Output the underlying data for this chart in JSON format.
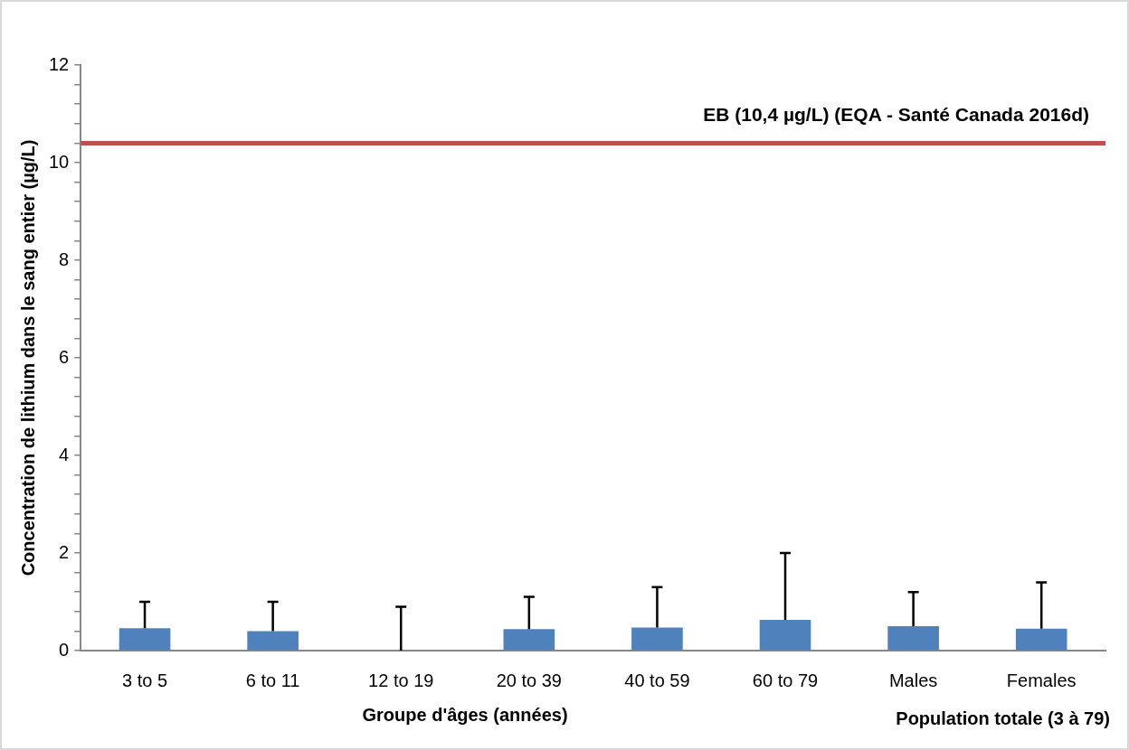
{
  "chart_data": {
    "type": "bar",
    "categories": [
      "3 to 5",
      "6 to 11",
      "12 to 19",
      "20 to 39",
      "40 to 59",
      "60 to 79",
      "Males",
      "Females"
    ],
    "values": [
      0.46,
      0.4,
      0,
      0.44,
      0.47,
      0.63,
      0.5,
      0.45
    ],
    "errors": [
      [
        0.46,
        1.0
      ],
      [
        0.4,
        1.0
      ],
      [
        0,
        0.9
      ],
      [
        0.44,
        1.1
      ],
      [
        0.47,
        1.3
      ],
      [
        0.63,
        2.0
      ],
      [
        0.5,
        1.2
      ],
      [
        0.45,
        1.4
      ]
    ],
    "color": "#4f81bd",
    "xlabel": "Groupe d'âges (années)",
    "ylabel": "Concentration de lithium dans le sang entier (µg/L)",
    "ylim": [
      0,
      12
    ],
    "yticks": [
      0,
      {
        "value": 0.4,
        "label": null
      },
      {
        "value": 0.8,
        "label": null
      },
      {
        "value": 1.2,
        "label": null
      },
      {
        "value": 1.6,
        "label": null
      },
      2,
      {
        "value": 2.4,
        "label": null
      },
      {
        "value": 2.8,
        "label": null
      },
      {
        "value": 3.2,
        "label": null
      },
      {
        "value": 3.6,
        "label": null
      },
      4,
      {
        "value": 4.4,
        "label": null
      },
      {
        "value": 4.8,
        "label": null
      },
      {
        "value": 5.2,
        "label": null
      },
      {
        "value": 5.6,
        "label": null
      },
      6,
      {
        "value": 6.4,
        "label": null
      },
      {
        "value": 6.8,
        "label": null
      },
      {
        "value": 7.2,
        "label": null
      },
      {
        "value": 7.6,
        "label": null
      },
      8,
      {
        "value": 8.4,
        "label": null
      },
      {
        "value": 8.8,
        "label": null
      },
      {
        "value": 9.2,
        "label": null
      },
      {
        "value": 9.6,
        "label": null
      },
      10,
      {
        "value": 10.4,
        "label": null
      },
      {
        "value": 10.8,
        "label": null
      },
      {
        "value": 11.2,
        "label": null
      },
      {
        "value": 11.6,
        "label": null
      },
      12
    ],
    "ref_lines": [
      {
        "axis": "y",
        "value": 10.4,
        "label": "EB (10,4 µg/L) (EQA - Santé Canada 2016d)",
        "color": "#c0504d"
      }
    ],
    "annotations": [
      "Population totale (3 à 79)"
    ],
    "grid": false,
    "legend": false
  }
}
